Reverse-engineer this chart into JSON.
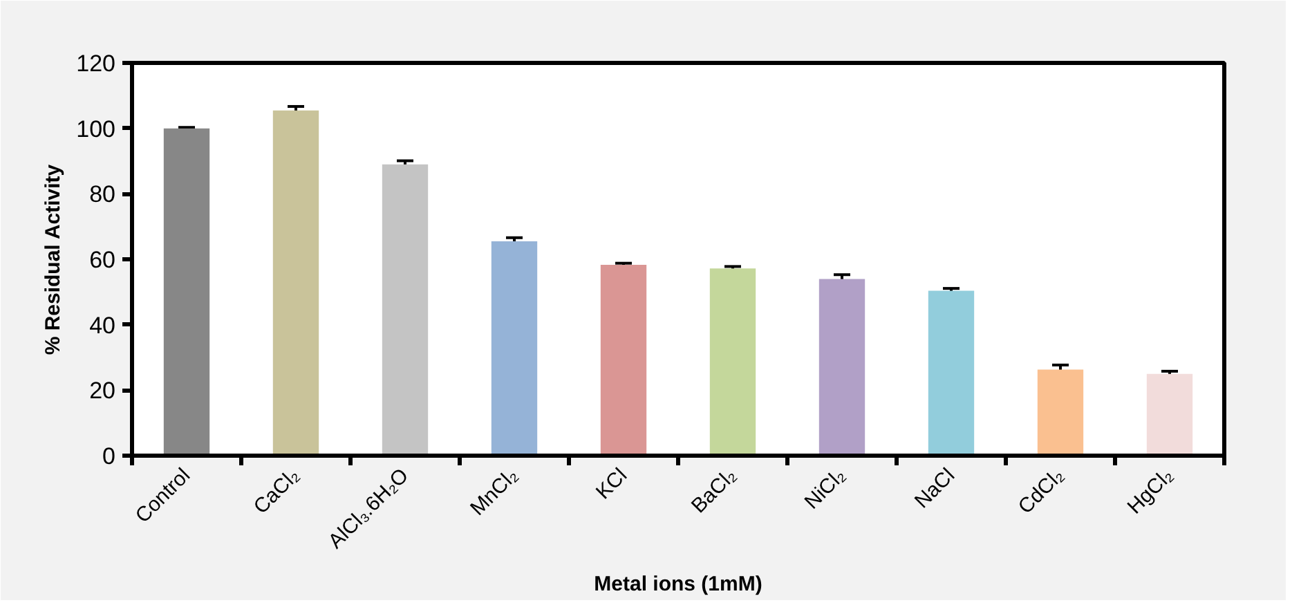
{
  "chart_data": {
    "type": "bar",
    "xlabel": "Metal ions (1mM)",
    "ylabel": "% Residual Activity",
    "categories": [
      "Control",
      "CaCl₂",
      "AlCl₃.6H₂O",
      "MnCl₂",
      "KCl",
      "BaCl₂",
      "NiCl₂",
      "NaCl",
      "CdCl₂",
      "HgCl₂"
    ],
    "values": [
      100,
      105.5,
      89,
      65.5,
      58.3,
      57.2,
      54,
      50.4,
      26.3,
      25
    ],
    "errors": [
      0.3,
      1.2,
      1.1,
      1.1,
      0.5,
      0.6,
      1.3,
      0.7,
      1.4,
      0.8
    ],
    "colors": [
      "#878787",
      "#c9c39a",
      "#c4c4c4",
      "#95b3d7",
      "#da9694",
      "#c4d79b",
      "#b1a0c7",
      "#92cddc",
      "#fac090",
      "#f2dcdb"
    ],
    "ylim": [
      0,
      120
    ],
    "yticks": [
      0,
      20,
      40,
      60,
      80,
      100,
      120
    ],
    "grid": false
  }
}
